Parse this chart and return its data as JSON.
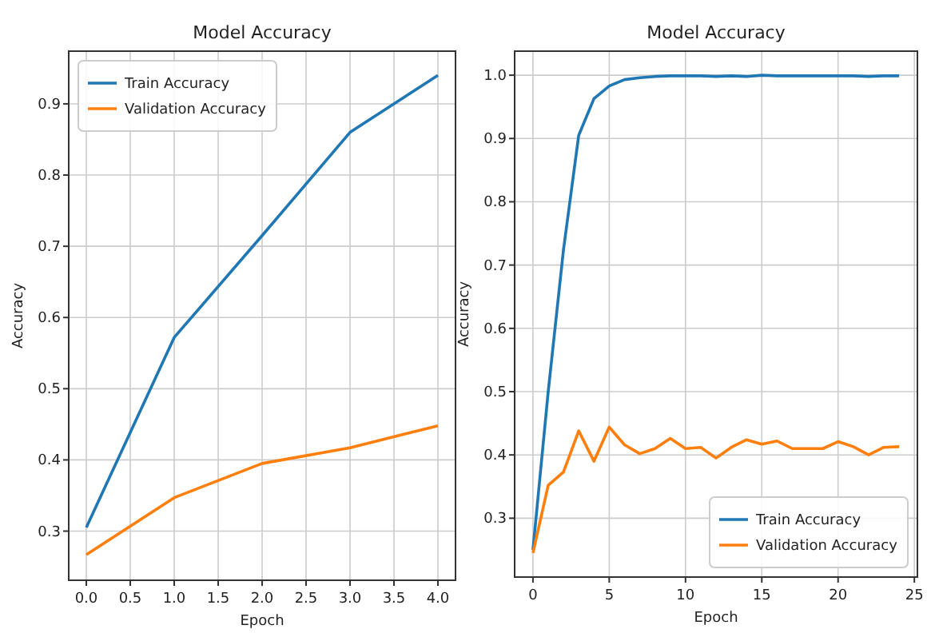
{
  "chart_data": [
    {
      "type": "line",
      "title": "Model Accuracy",
      "xlabel": "Epoch",
      "ylabel": "Accuracy",
      "x": [
        0,
        1,
        2,
        3,
        4
      ],
      "xlim": [
        -0.2,
        4.2
      ],
      "ylim": [
        0.231,
        0.974
      ],
      "xticks": [
        {
          "value": 0,
          "label": "0.0"
        },
        {
          "value": 0.5,
          "label": "0.5"
        },
        {
          "value": 1,
          "label": "1.0"
        },
        {
          "value": 1.5,
          "label": "1.5"
        },
        {
          "value": 2,
          "label": "2.0"
        },
        {
          "value": 2.5,
          "label": "2.5"
        },
        {
          "value": 3,
          "label": "3.0"
        },
        {
          "value": 3.5,
          "label": "3.5"
        },
        {
          "value": 4,
          "label": "4.0"
        }
      ],
      "yticks": [
        0.3,
        0.4,
        0.5,
        0.6,
        0.7,
        0.8,
        0.9
      ],
      "grid": true,
      "legend": "top left",
      "series": [
        {
          "name": "Train Accuracy",
          "color": "#1f77b4",
          "values": [
            0.305,
            0.572,
            0.715,
            0.86,
            0.94
          ]
        },
        {
          "name": "Validation Accuracy",
          "color": "#ff7f0e",
          "values": [
            0.267,
            0.347,
            0.395,
            0.417,
            0.448
          ]
        }
      ]
    },
    {
      "type": "line",
      "title": "Model Accuracy",
      "xlabel": "Epoch",
      "ylabel": "Accuracy",
      "x": [
        0,
        1,
        2,
        3,
        4,
        5,
        6,
        7,
        8,
        9,
        10,
        11,
        12,
        13,
        14,
        15,
        16,
        17,
        18,
        19,
        20,
        21,
        22,
        23,
        24
      ],
      "xlim": [
        -1.2,
        25.2
      ],
      "ylim": [
        0.207,
        1.038
      ],
      "xticks": [
        0,
        5,
        10,
        15,
        20,
        25
      ],
      "yticks": [
        0.3,
        0.4,
        0.5,
        0.6,
        0.7,
        0.8,
        0.9,
        {
          "value": 1,
          "label": "1.0"
        }
      ],
      "grid": true,
      "legend": "bottom right",
      "series": [
        {
          "name": "Train Accuracy",
          "color": "#1f77b4",
          "values": [
            0.25,
            0.5,
            0.724,
            0.905,
            0.963,
            0.983,
            0.993,
            0.996,
            0.998,
            0.999,
            0.999,
            0.999,
            0.998,
            0.999,
            0.998,
            1.0,
            0.999,
            0.999,
            0.999,
            0.999,
            0.999,
            0.999,
            0.998,
            0.999,
            0.999
          ]
        },
        {
          "name": "Validation Accuracy",
          "color": "#ff7f0e",
          "values": [
            0.245,
            0.352,
            0.373,
            0.438,
            0.39,
            0.444,
            0.416,
            0.402,
            0.41,
            0.426,
            0.41,
            0.412,
            0.395,
            0.412,
            0.424,
            0.417,
            0.422,
            0.41,
            0.41,
            0.41,
            0.421,
            0.413,
            0.4,
            0.412,
            0.413
          ]
        }
      ]
    }
  ]
}
